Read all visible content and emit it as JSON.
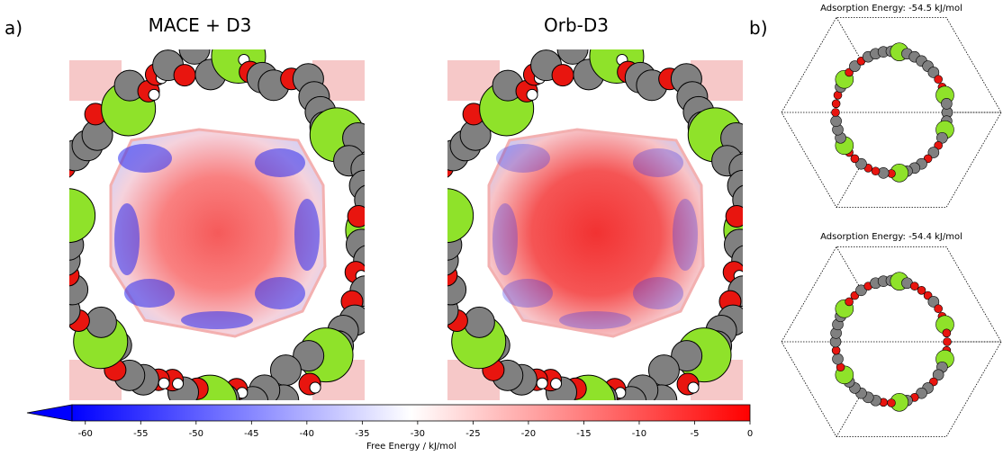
{
  "figure": {
    "panel_a": {
      "label": "a)",
      "titles": [
        "MACE + D3",
        "Orb-D3"
      ]
    },
    "panel_b": {
      "label": "b)",
      "titles": [
        "Adsorption Energy: -54.5 kJ/mol",
        "Adsorption Energy: -54.4 kJ/mol"
      ]
    },
    "colorbar": {
      "label": "Free Energy / kJ/mol",
      "clim": [
        -61.2,
        0
      ],
      "extend": "min",
      "ticks": [
        -60,
        -55,
        -50,
        -45,
        -40,
        -35,
        -30,
        -25,
        -20,
        -15,
        -10,
        -5,
        0
      ],
      "colors": [
        "#0000ff",
        "#ffffff",
        "#ff0000"
      ]
    }
  }
}
